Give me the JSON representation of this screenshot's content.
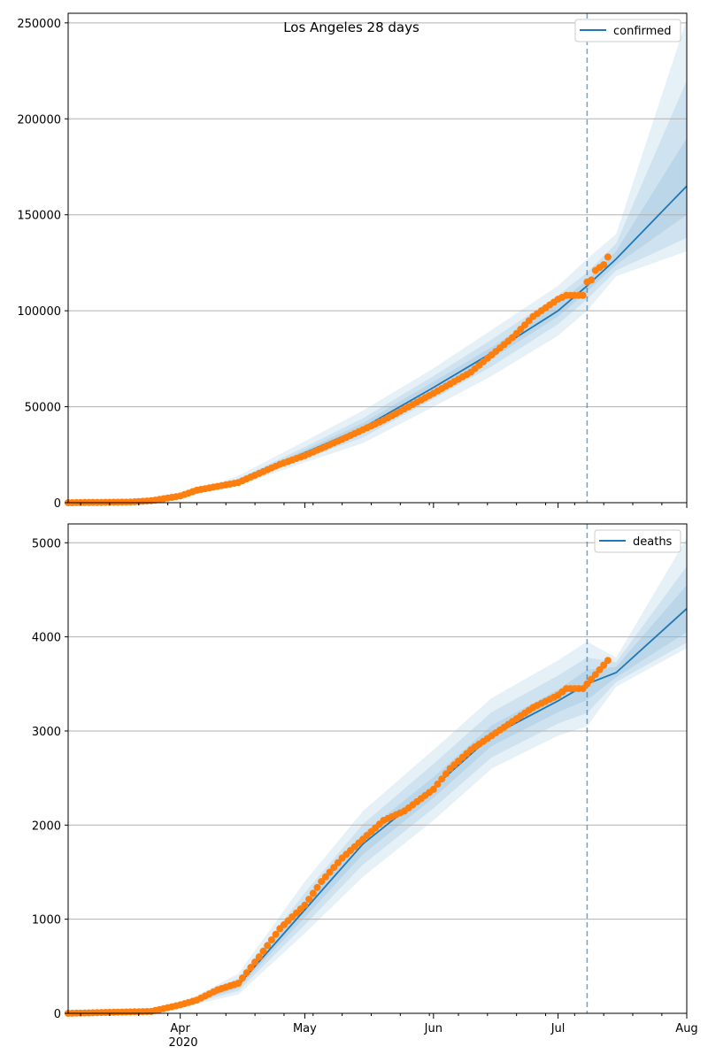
{
  "title": "Los Angeles 28 days",
  "colors": {
    "forecast": "#1f77b4",
    "observed": "#ff7f0e",
    "band": "#1f77b4",
    "grid": "#b0b0b0",
    "vline": "#1f77b4"
  },
  "chart_data": [
    {
      "type": "line",
      "metric": "confirmed",
      "legend": "confirmed",
      "legend_position": "top-right",
      "grid": "horizontal",
      "x_range": [
        "2020-03-05",
        "2020-08-01"
      ],
      "ylim": [
        0,
        255000
      ],
      "yticks": [
        0,
        50000,
        100000,
        150000,
        200000,
        250000
      ],
      "ytick_labels": [
        "0",
        "50000",
        "100000",
        "150000",
        "200000",
        "250000"
      ],
      "forecast_start": "2020-07-08",
      "forecast": {
        "x": [
          "2020-03-05",
          "2020-03-25",
          "2020-04-01",
          "2020-04-15",
          "2020-05-01",
          "2020-05-15",
          "2020-06-01",
          "2020-06-15",
          "2020-07-01",
          "2020-07-08",
          "2020-07-15",
          "2020-08-01"
        ],
        "y": [
          0,
          500,
          3000,
          11000,
          26000,
          39000,
          60000,
          78000,
          100000,
          113000,
          127000,
          165000
        ]
      },
      "bands": [
        {
          "lower": [
            0,
            400,
            2600,
            9000,
            21000,
            31000,
            50000,
            66000,
            87000,
            100000,
            118000,
            131000
          ],
          "upper": [
            0,
            600,
            3500,
            14000,
            32000,
            48000,
            70000,
            90000,
            113000,
            127000,
            140000,
            252000
          ]
        },
        {
          "lower": [
            0,
            450,
            2800,
            10000,
            23000,
            34000,
            54000,
            71000,
            93000,
            106000,
            121000,
            138000
          ],
          "upper": [
            0,
            560,
            3300,
            12500,
            29000,
            44000,
            66000,
            85000,
            108000,
            120000,
            135000,
            220000
          ]
        },
        {
          "lower": [
            0,
            480,
            2900,
            10500,
            24500,
            36500,
            57000,
            75000,
            97000,
            110000,
            124000,
            150000
          ],
          "upper": [
            0,
            530,
            3150,
            11600,
            27500,
            41500,
            63000,
            81000,
            104000,
            116000,
            131000,
            190000
          ]
        }
      ],
      "observed": {
        "x": [
          "2020-03-05",
          "2020-03-20",
          "2020-03-25",
          "2020-04-01",
          "2020-04-05",
          "2020-04-15",
          "2020-04-25",
          "2020-05-01",
          "2020-05-10",
          "2020-05-20",
          "2020-06-01",
          "2020-06-10",
          "2020-06-20",
          "2020-06-25",
          "2020-07-01",
          "2020-07-03",
          "2020-07-07",
          "2020-07-08",
          "2020-07-09",
          "2020-07-10",
          "2020-07-12",
          "2020-07-13"
        ],
        "y": [
          0,
          300,
          1000,
          3500,
          6500,
          10500,
          20000,
          24500,
          33000,
          43000,
          57000,
          68000,
          86000,
          97000,
          106000,
          108000,
          108000,
          115000,
          116000,
          121000,
          124000,
          128000
        ]
      }
    },
    {
      "type": "line",
      "metric": "deaths",
      "legend": "deaths",
      "legend_position": "top-right",
      "grid": "horizontal",
      "x_range": [
        "2020-03-05",
        "2020-08-01"
      ],
      "ylim": [
        0,
        5200
      ],
      "yticks": [
        0,
        1000,
        2000,
        3000,
        4000,
        5000
      ],
      "ytick_labels": [
        "0",
        "1000",
        "2000",
        "3000",
        "4000",
        "5000"
      ],
      "forecast_start": "2020-07-08",
      "forecast": {
        "x": [
          "2020-03-05",
          "2020-03-25",
          "2020-04-01",
          "2020-04-15",
          "2020-05-01",
          "2020-05-15",
          "2020-06-01",
          "2020-06-15",
          "2020-07-01",
          "2020-07-08",
          "2020-07-15",
          "2020-08-01"
        ],
        "y": [
          0,
          20,
          80,
          300,
          1100,
          1800,
          2400,
          2950,
          3320,
          3500,
          3620,
          4300
        ]
      },
      "bands": [
        {
          "lower": [
            0,
            15,
            60,
            200,
            850,
            1450,
            2050,
            2600,
            2950,
            3050,
            3470,
            3880
          ],
          "upper": [
            0,
            25,
            100,
            420,
            1400,
            2150,
            2800,
            3350,
            3750,
            3950,
            3780,
            5050
          ]
        },
        {
          "lower": [
            0,
            17,
            68,
            240,
            940,
            1580,
            2180,
            2720,
            3080,
            3190,
            3520,
            3940
          ],
          "upper": [
            0,
            23,
            92,
            370,
            1280,
            2010,
            2650,
            3200,
            3590,
            3780,
            3730,
            4750
          ]
        },
        {
          "lower": [
            0,
            18,
            74,
            270,
            1020,
            1690,
            2290,
            2840,
            3200,
            3330,
            3570,
            4050
          ],
          "upper": [
            0,
            22,
            86,
            330,
            1180,
            1910,
            2510,
            3060,
            3440,
            3650,
            3680,
            4550
          ]
        }
      ],
      "observed": {
        "x": [
          "2020-03-05",
          "2020-03-25",
          "2020-04-01",
          "2020-04-05",
          "2020-04-10",
          "2020-04-15",
          "2020-04-20",
          "2020-04-25",
          "2020-05-01",
          "2020-05-05",
          "2020-05-10",
          "2020-05-15",
          "2020-05-20",
          "2020-05-25",
          "2020-06-01",
          "2020-06-05",
          "2020-06-10",
          "2020-06-15",
          "2020-06-20",
          "2020-06-25",
          "2020-07-01",
          "2020-07-03",
          "2020-07-07",
          "2020-07-08",
          "2020-07-09",
          "2020-07-10",
          "2020-07-11",
          "2020-07-12",
          "2020-07-13"
        ],
        "y": [
          0,
          20,
          90,
          140,
          250,
          320,
          600,
          900,
          1150,
          1400,
          1650,
          1850,
          2050,
          2150,
          2380,
          2600,
          2800,
          2950,
          3100,
          3250,
          3380,
          3450,
          3450,
          3500,
          3550,
          3600,
          3650,
          3700,
          3750
        ]
      }
    }
  ],
  "x_axis": {
    "tick_labels": [
      "Apr",
      "May",
      "Jun",
      "Jul",
      "Aug"
    ],
    "year_label": "2020"
  }
}
